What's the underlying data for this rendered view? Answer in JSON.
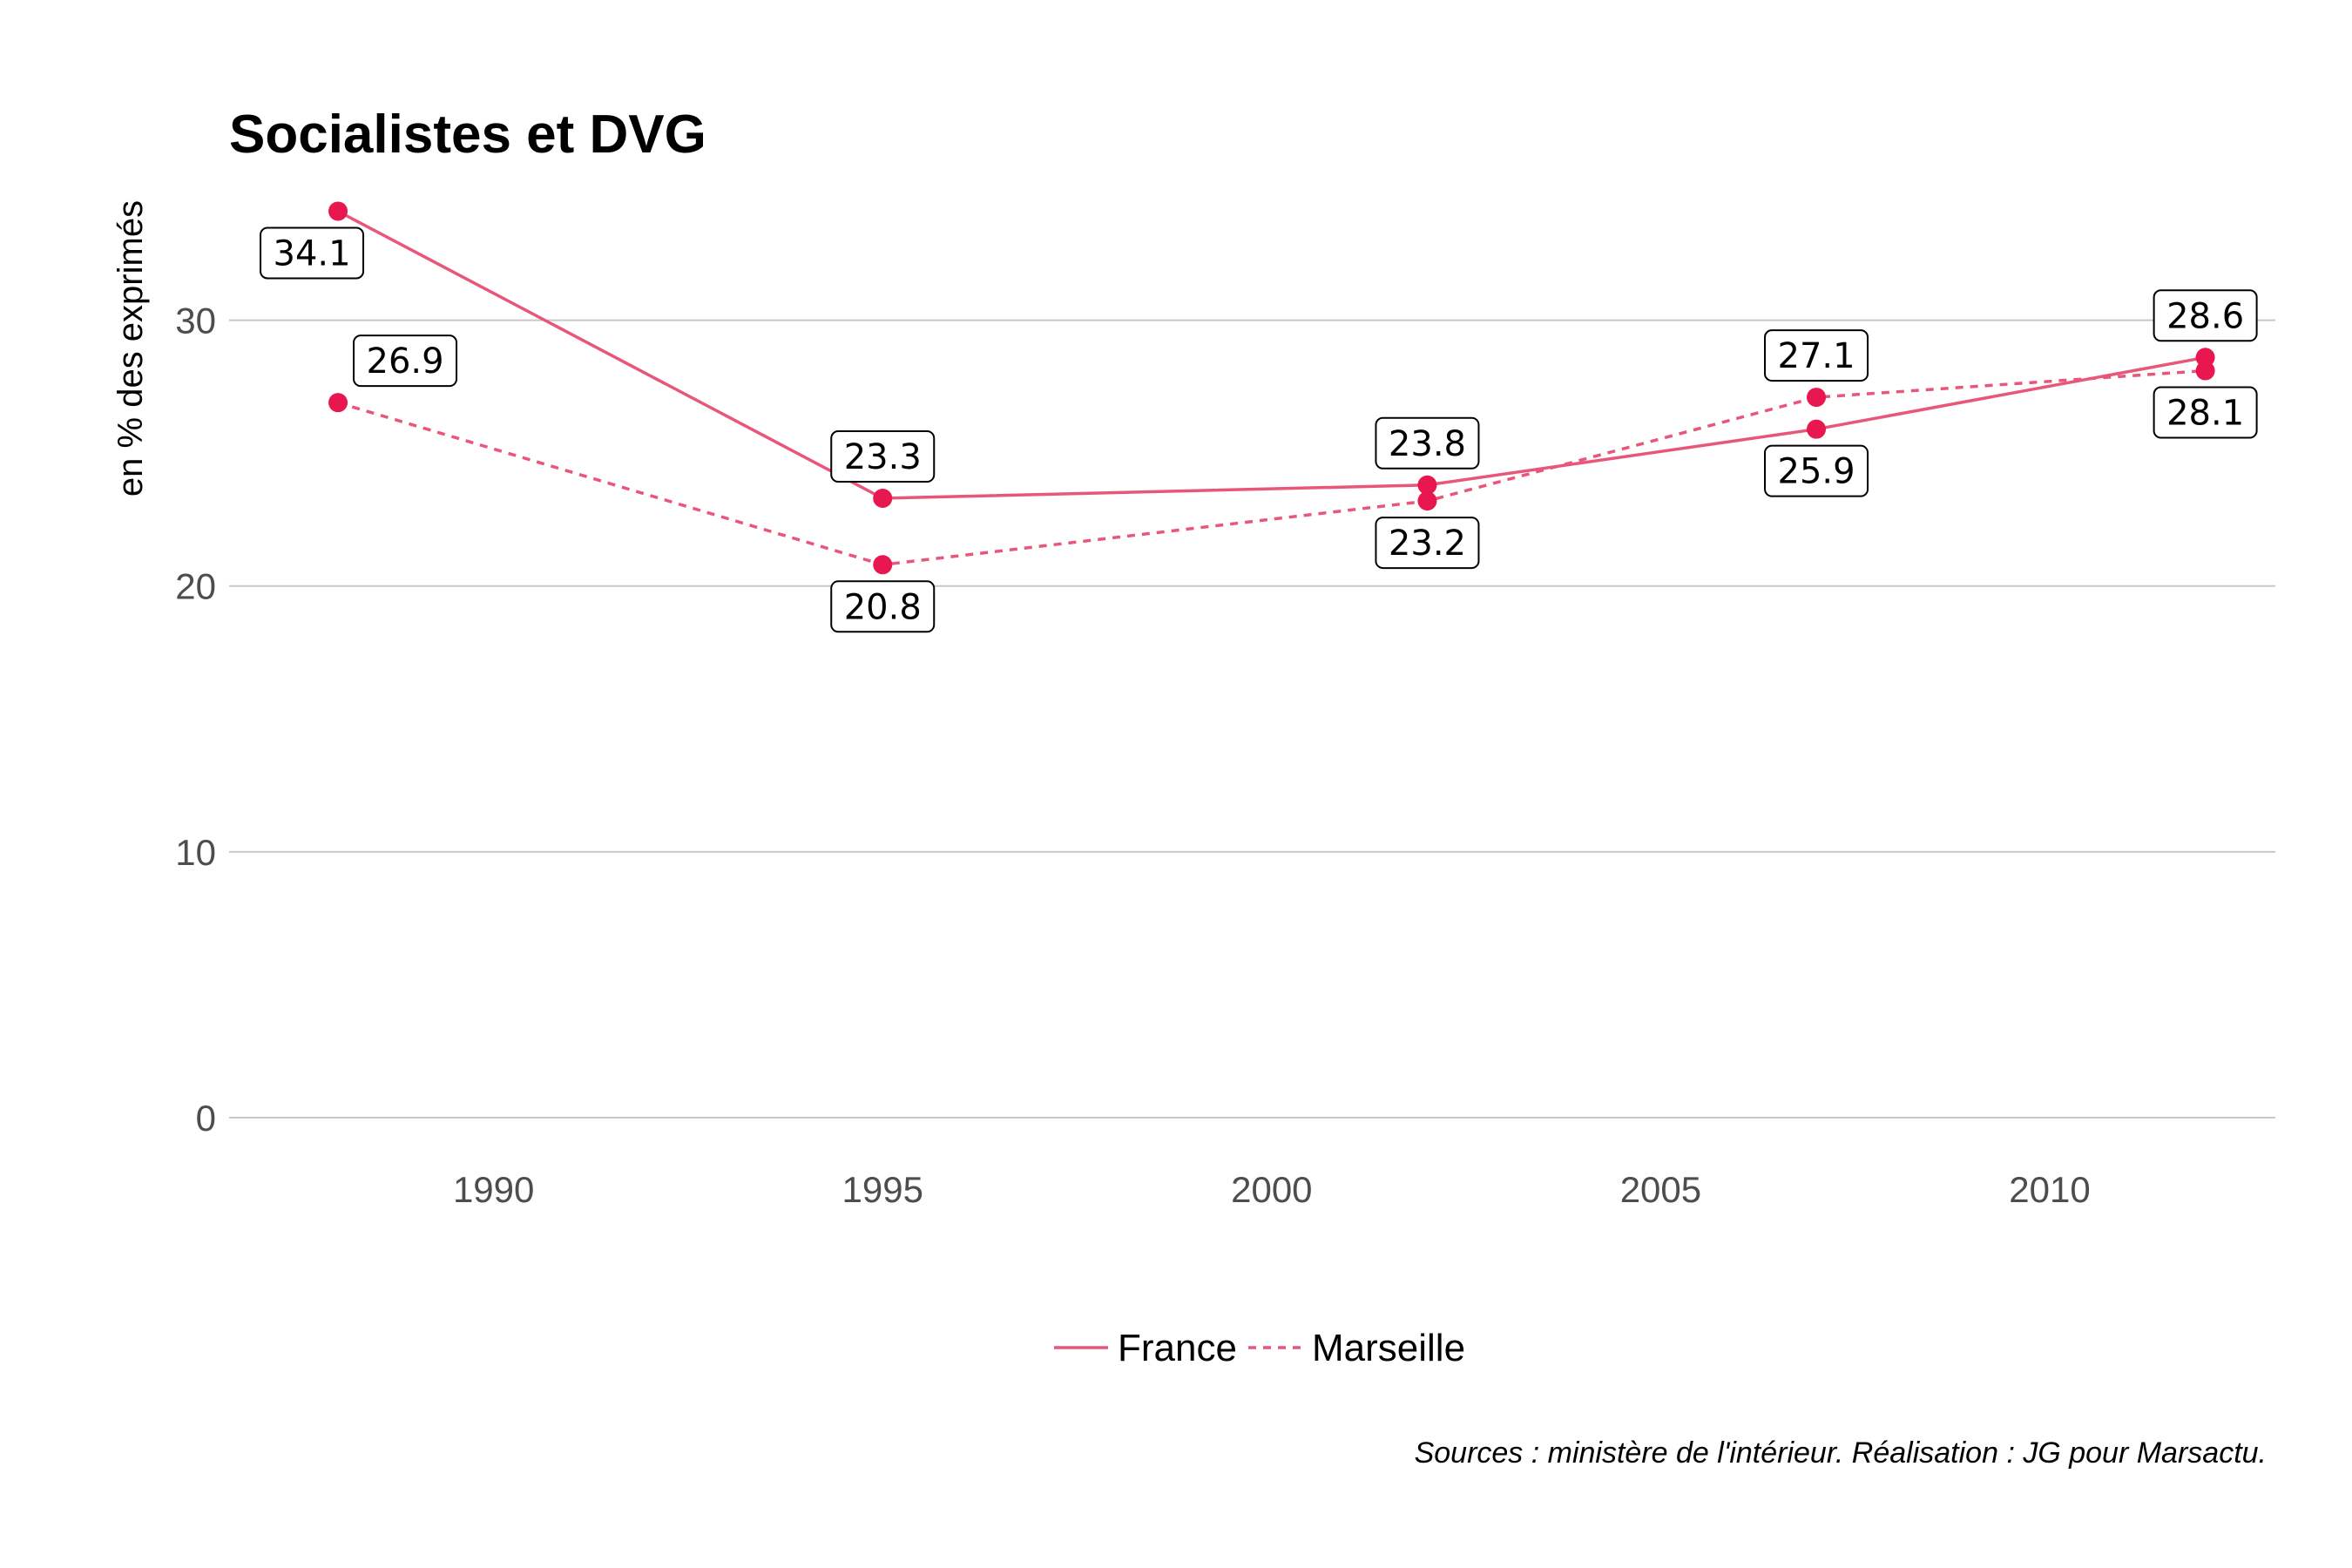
{
  "chart_data": {
    "type": "line",
    "title": "Socialistes et DVG",
    "xlabel": "",
    "ylabel": "en % des exprimés",
    "xlim": [
      1986.6,
      2012.9
    ],
    "ylim": [
      0,
      35
    ],
    "x_ticks": [
      1990,
      1995,
      2000,
      2005,
      2010
    ],
    "y_ticks": [
      0,
      10,
      20,
      30
    ],
    "grid": true,
    "legend_position": "bottom",
    "series": [
      {
        "name": "France",
        "line_style": "solid",
        "x": [
          1988,
          1995,
          2002,
          2007,
          2012
        ],
        "values": [
          34.1,
          23.3,
          23.8,
          25.9,
          28.6
        ],
        "labels": [
          "34.1",
          "23.3",
          "23.8",
          "25.9",
          "28.6"
        ]
      },
      {
        "name": "Marseille",
        "line_style": "dashed",
        "x": [
          1988,
          1995,
          2002,
          2007,
          2012
        ],
        "values": [
          26.9,
          20.8,
          23.2,
          27.1,
          28.1
        ],
        "labels": [
          "26.9",
          "20.8",
          "23.2",
          "27.1",
          "28.1"
        ]
      }
    ],
    "caption": "Sources : ministère de l'intérieur. Réalisation : JG pour Marsactu."
  },
  "colors": {
    "line": "#e8577a",
    "point": "#e8174f"
  }
}
